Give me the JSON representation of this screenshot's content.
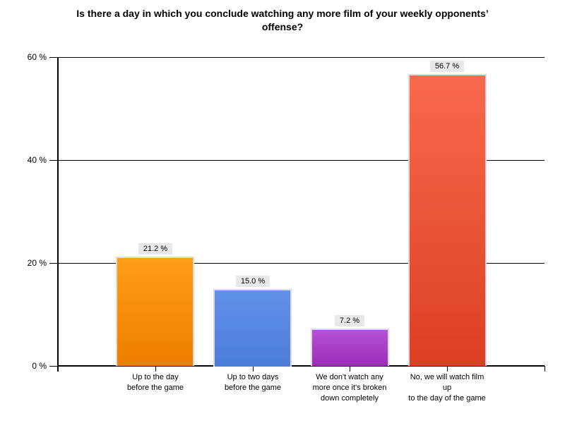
{
  "title": {
    "lines": [
      "Is there a day in which you conclude watching any more film of your weekly opponents’",
      "offense?"
    ]
  },
  "chart_data": {
    "type": "bar",
    "title": "Is there a day in which you conclude watching any more film of your weekly opponents’ offense?",
    "categories": [
      "Up to the day before the game",
      "Up to two days before the game",
      "We don't watch any more once it's broken down completely",
      "No, we will watch film up to the day of the game"
    ],
    "category_lines": [
      [
        "Up to the day",
        "before the game"
      ],
      [
        "Up to two days",
        "before the game"
      ],
      [
        "We don't watch any",
        "more once it's broken",
        "down completely"
      ],
      [
        "No, we will watch film",
        "up",
        "to the day of the game"
      ]
    ],
    "values": [
      21.2,
      15.0,
      7.2,
      56.7
    ],
    "value_labels": [
      "21.2 %",
      "15.0 %",
      "7.2 %",
      "56.7 %"
    ],
    "y_ticks": [
      {
        "value": 0,
        "label": "0 %"
      },
      {
        "value": 20,
        "label": "20 %"
      },
      {
        "value": 40,
        "label": "40 %"
      },
      {
        "value": 60,
        "label": "60 %"
      }
    ],
    "ylim": [
      0,
      60
    ],
    "xlabel": "",
    "ylabel": "",
    "grid": true,
    "legend": "none",
    "bar_colors": [
      {
        "top": "#FF9E17",
        "bottom": "#EE7D00"
      },
      {
        "top": "#6291EA",
        "bottom": "#4D7CD9"
      },
      {
        "top": "#B751D4",
        "bottom": "#9C2DB9"
      },
      {
        "top": "#F9694D",
        "bottom": "#DC3F22"
      }
    ],
    "bar_border_color": "#DCDCDC",
    "value_label_bg": "#E8E8E8",
    "axis_color": "#000000",
    "background": "#FFFFFF"
  }
}
